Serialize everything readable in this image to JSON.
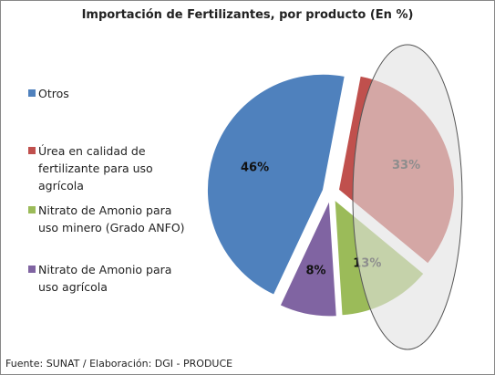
{
  "chart_data": {
    "type": "pie",
    "title": "Importación de Fertilizantes, por producto (En %)",
    "categories": [
      "Otros",
      "Úrea en calidad de fertilizante para uso agrícola",
      "Nitrato de Amonio para uso minero (Grado ANFO)",
      "Nitrato de Amonio para uso agrícola"
    ],
    "values": [
      46,
      33,
      13,
      8
    ],
    "value_labels": [
      "46%",
      "33%",
      "13%",
      "8%"
    ],
    "colors": [
      "#4f81bd",
      "#c0504d",
      "#9bbb59",
      "#8064a2"
    ],
    "legend": "left",
    "source": "Fuente: SUNAT / Elaboración: DGI - PRODUCE"
  }
}
